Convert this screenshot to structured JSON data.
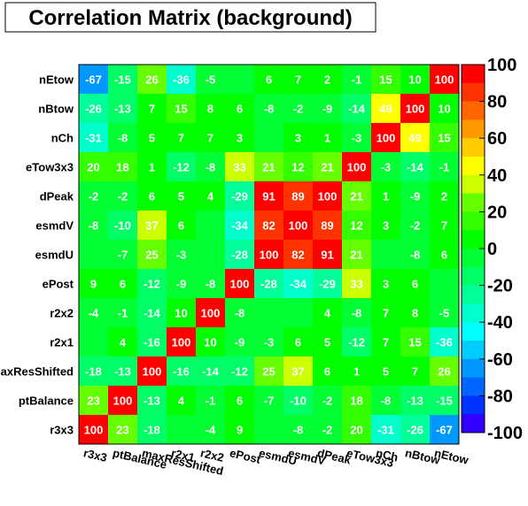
{
  "chart_data": {
    "type": "heatmap",
    "title": "Correlation Matrix (background)",
    "xlabel": "",
    "ylabel": "",
    "x_labels": [
      "r3x3",
      "ptBalance",
      "maxResShifted",
      "r2x1",
      "r2x2",
      "ePost",
      "esmdU",
      "esmdV",
      "dPeak",
      "eTow3x3",
      "nCh",
      "nBtow",
      "nEtow"
    ],
    "y_labels_top_to_bottom": [
      "nEtow",
      "nBtow",
      "nCh",
      "eTow3x3",
      "dPeak",
      "esmdV",
      "esmdU",
      "ePost",
      "r2x2",
      "r2x1",
      "maxResShifted",
      "ptBalance",
      "r3x3"
    ],
    "values_top_to_bottom": [
      [
        -67,
        -15,
        26,
        -36,
        -5,
        0,
        6,
        7,
        2,
        -1,
        15,
        10,
        100
      ],
      [
        -26,
        -13,
        7,
        15,
        8,
        6,
        -8,
        -2,
        -9,
        -14,
        49,
        100,
        10
      ],
      [
        -31,
        -8,
        5,
        7,
        7,
        3,
        0,
        3,
        1,
        -3,
        100,
        49,
        15
      ],
      [
        20,
        18,
        1,
        -12,
        -8,
        33,
        21,
        12,
        21,
        100,
        -3,
        -14,
        -1
      ],
      [
        -2,
        -2,
        6,
        5,
        4,
        -29,
        91,
        89,
        100,
        21,
        1,
        -9,
        2
      ],
      [
        -8,
        -10,
        37,
        6,
        0,
        -34,
        82,
        100,
        89,
        12,
        3,
        -2,
        7
      ],
      [
        0,
        -7,
        25,
        -3,
        0,
        -28,
        100,
        82,
        91,
        21,
        0,
        -8,
        6
      ],
      [
        9,
        6,
        -12,
        -9,
        -8,
        100,
        -28,
        -34,
        -29,
        33,
        3,
        6,
        0
      ],
      [
        -4,
        -1,
        -14,
        10,
        100,
        -8,
        0,
        0,
        4,
        -8,
        7,
        8,
        -5
      ],
      [
        0,
        4,
        -16,
        100,
        10,
        -9,
        -3,
        6,
        5,
        -12,
        7,
        15,
        -36
      ],
      [
        -18,
        -13,
        100,
        -16,
        -14,
        -12,
        25,
        37,
        6,
        1,
        5,
        7,
        26
      ],
      [
        23,
        100,
        -13,
        4,
        -1,
        6,
        -7,
        -10,
        -2,
        18,
        -8,
        -13,
        -15
      ],
      [
        100,
        23,
        -18,
        0,
        -4,
        9,
        0,
        -8,
        -2,
        20,
        -31,
        -26,
        -67
      ]
    ],
    "zlim": [
      -100,
      100
    ],
    "colorbar_ticks": [
      100,
      80,
      60,
      40,
      20,
      0,
      -20,
      -40,
      -60,
      -80,
      -100
    ],
    "colorbar_colors_top_to_bottom": [
      "#ff0000",
      "#ff3300",
      "#ff6600",
      "#ff9900",
      "#ffcc00",
      "#ffff00",
      "#ccff00",
      "#66ff00",
      "#33ff00",
      "#00ff00",
      "#00ff33",
      "#00ff66",
      "#00ff99",
      "#00ffcc",
      "#00ffff",
      "#00ccff",
      "#0099ff",
      "#0066ff",
      "#0033ff",
      "#3300ff"
    ],
    "legend": "right-colorbar"
  }
}
